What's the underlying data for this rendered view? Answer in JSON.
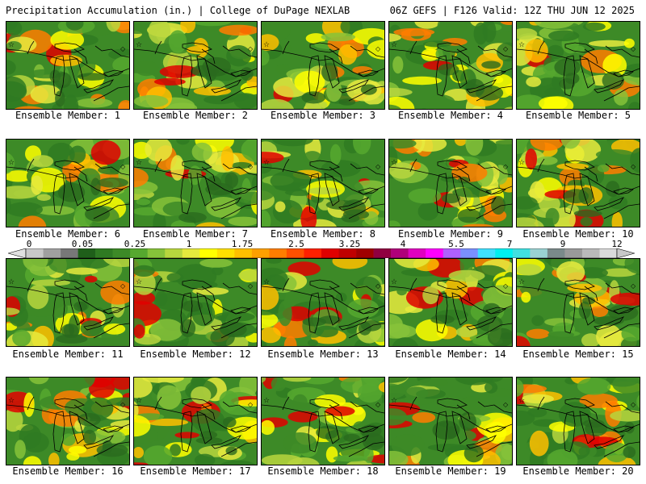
{
  "header": {
    "title_left": "Precipitation Accumulation (in.) | College of DuPage NEXLAB",
    "title_right": "06Z GEFS | F126 Valid: 12Z THU JUN 12 2025"
  },
  "legend": {
    "tick_labels": [
      "0",
      "0.05",
      "0.25",
      "1",
      "1.75",
      "2.5",
      "3.25",
      "4",
      "5.5",
      "7",
      "9",
      "12"
    ],
    "colors": [
      "#c8c8c8",
      "#a0a0a0",
      "#787878",
      "#1f5f1a",
      "#2f7a22",
      "#3d8a27",
      "#56a82f",
      "#86c23a",
      "#b8d63e",
      "#e6ea3e",
      "#ffff00",
      "#ffe000",
      "#ffc000",
      "#ffa000",
      "#ff7d00",
      "#ff5000",
      "#ff2000",
      "#e00000",
      "#c00000",
      "#a00000",
      "#900040",
      "#b0007a",
      "#e000c0",
      "#ff00ff",
      "#b060ff",
      "#7a90ff",
      "#40e0ff",
      "#00f0f0",
      "#40e0e0",
      "#9ad2d2",
      "#7a8a8a",
      "#9a9a9a",
      "#bababa",
      "#dadada"
    ]
  },
  "panels": [
    {
      "label": "Ensemble Member: 1"
    },
    {
      "label": "Ensemble Member: 2"
    },
    {
      "label": "Ensemble Member: 3"
    },
    {
      "label": "Ensemble Member: 4"
    },
    {
      "label": "Ensemble Member: 5"
    },
    {
      "label": "Ensemble Member: 6"
    },
    {
      "label": "Ensemble Member: 7"
    },
    {
      "label": "Ensemble Member: 8"
    },
    {
      "label": "Ensemble Member: 9"
    },
    {
      "label": "Ensemble Member: 10"
    },
    {
      "label": "Ensemble Member: 11"
    },
    {
      "label": "Ensemble Member: 12"
    },
    {
      "label": "Ensemble Member: 13"
    },
    {
      "label": "Ensemble Member: 14"
    },
    {
      "label": "Ensemble Member: 15"
    },
    {
      "label": "Ensemble Member: 16"
    },
    {
      "label": "Ensemble Member: 17"
    },
    {
      "label": "Ensemble Member: 18"
    },
    {
      "label": "Ensemble Member: 19"
    },
    {
      "label": "Ensemble Member: 20"
    }
  ]
}
